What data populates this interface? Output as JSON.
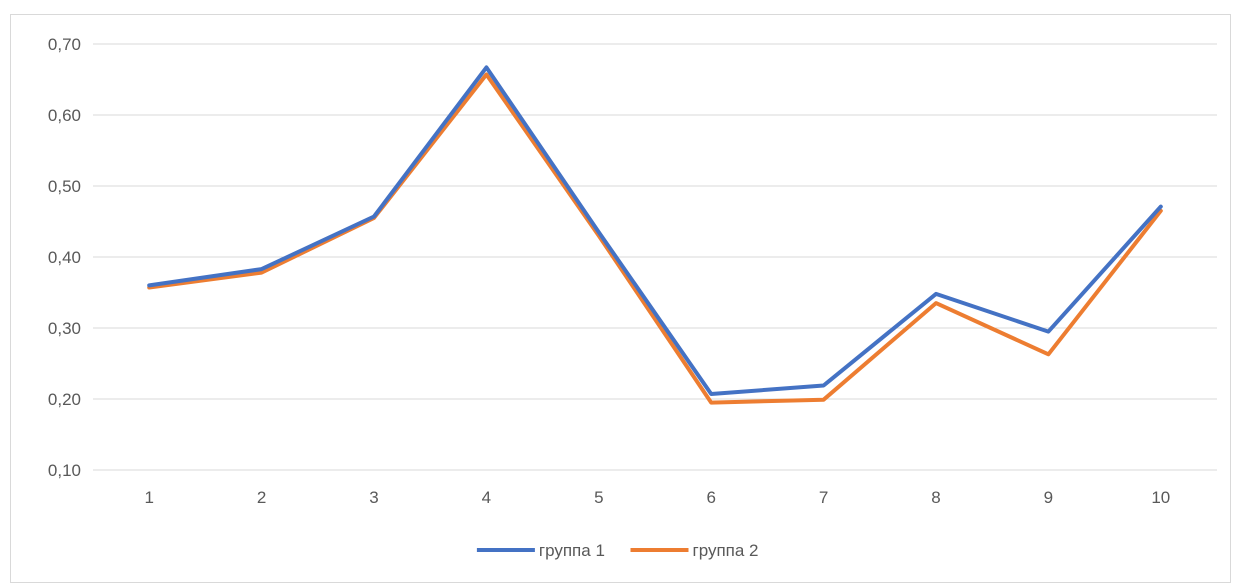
{
  "chart_data": {
    "type": "line",
    "title": "",
    "xlabel": "",
    "ylabel": "",
    "x": [
      "1",
      "2",
      "3",
      "4",
      "5",
      "6",
      "7",
      "8",
      "9",
      "10"
    ],
    "ylim": [
      0.1,
      0.7
    ],
    "yticks": [
      0.1,
      0.2,
      0.3,
      0.4,
      0.5,
      0.6,
      0.7
    ],
    "ytick_labels": [
      "0,10",
      "0,20",
      "0,30",
      "0,40",
      "0,50",
      "0,60",
      "0,70"
    ],
    "grid": true,
    "legend_position": "bottom",
    "series": [
      {
        "name": "группа 1",
        "color": "#4472C4",
        "values": [
          0.36,
          0.383,
          0.457,
          0.667,
          0.435,
          0.207,
          0.219,
          0.348,
          0.295,
          0.471
        ]
      },
      {
        "name": "группа 2",
        "color": "#ED7D31",
        "values": [
          0.357,
          0.378,
          0.455,
          0.657,
          0.43,
          0.195,
          0.199,
          0.335,
          0.263,
          0.465
        ]
      }
    ]
  }
}
